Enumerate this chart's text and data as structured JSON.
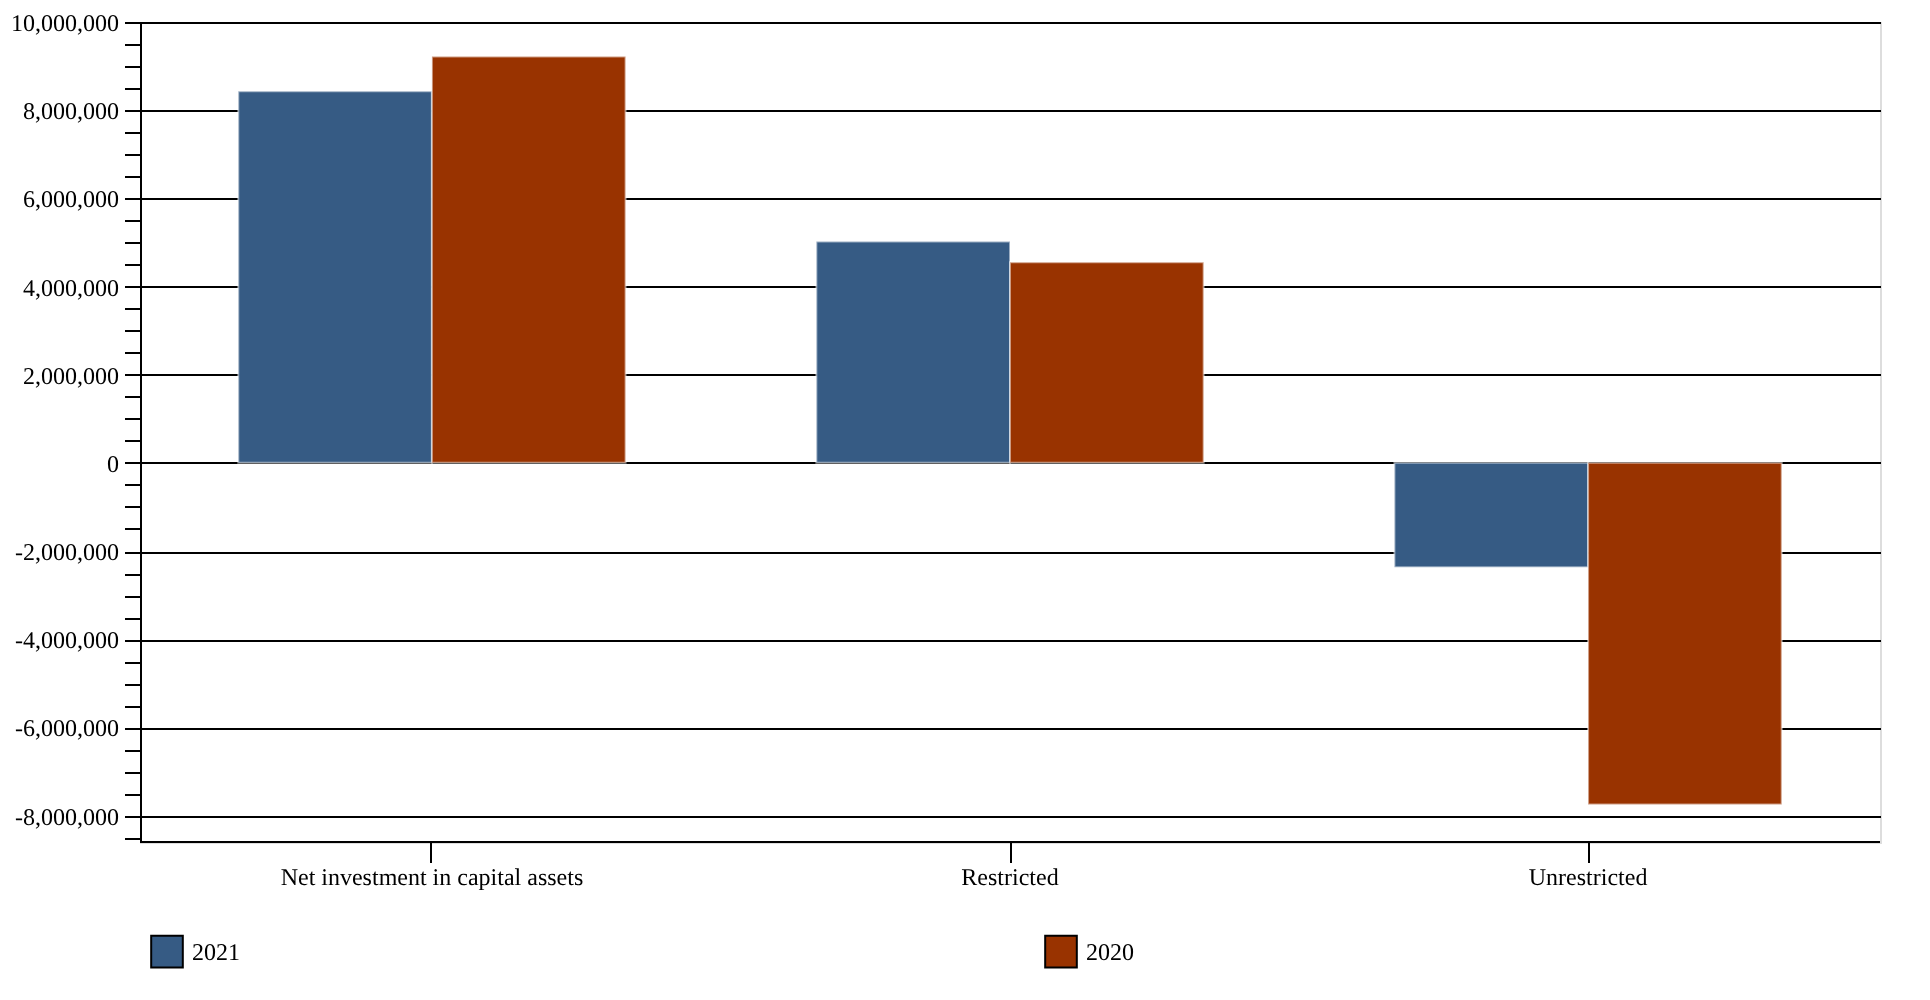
{
  "chart_data": {
    "type": "bar",
    "categories": [
      "Net investment in capital assets",
      "Restricted",
      "Unrestricted"
    ],
    "series": [
      {
        "name": "2021",
        "color": "#365b84",
        "values": [
          8430000,
          5020000,
          -2370000
        ]
      },
      {
        "name": "2020",
        "color": "#993300",
        "values": [
          9220000,
          4550000,
          -7750000
        ]
      }
    ],
    "ylim": [
      -8600000,
      10000000
    ],
    "yticks": [
      {
        "value": -8500000,
        "label": null
      },
      {
        "value": -8000000,
        "label": "-8,000,000"
      },
      {
        "value": -7500000,
        "label": null
      },
      {
        "value": -7000000,
        "label": null
      },
      {
        "value": -6500000,
        "label": null
      },
      {
        "value": -6000000,
        "label": "-6,000,000"
      },
      {
        "value": -5500000,
        "label": null
      },
      {
        "value": -5000000,
        "label": null
      },
      {
        "value": -4500000,
        "label": null
      },
      {
        "value": -4000000,
        "label": "-4,000,000"
      },
      {
        "value": -3500000,
        "label": null
      },
      {
        "value": -3000000,
        "label": null
      },
      {
        "value": -2500000,
        "label": null
      },
      {
        "value": -2000000,
        "label": "-2,000,000"
      },
      {
        "value": -1500000,
        "label": null
      },
      {
        "value": -1000000,
        "label": null
      },
      {
        "value": -500000,
        "label": null
      },
      0,
      {
        "value": 500000,
        "label": null
      },
      {
        "value": 1000000,
        "label": null
      },
      {
        "value": 1500000,
        "label": null
      },
      {
        "value": 2000000,
        "label": "2,000,000"
      },
      {
        "value": 2500000,
        "label": null
      },
      {
        "value": 3000000,
        "label": null
      },
      {
        "value": 3500000,
        "label": null
      },
      {
        "value": 4000000,
        "label": "4,000,000"
      },
      {
        "value": 4500000,
        "label": null
      },
      {
        "value": 5000000,
        "label": null
      },
      {
        "value": 5500000,
        "label": null
      },
      {
        "value": 6000000,
        "label": "6,000,000"
      },
      {
        "value": 6500000,
        "label": null
      },
      {
        "value": 7000000,
        "label": null
      },
      {
        "value": 7500000,
        "label": null
      },
      {
        "value": 8000000,
        "label": "8,000,000"
      },
      {
        "value": 8500000,
        "label": null
      },
      {
        "value": 9000000,
        "label": null
      },
      {
        "value": 9500000,
        "label": null
      },
      {
        "value": 10000000,
        "label": "10,000,000"
      }
    ],
    "grid": "y",
    "legend": "bottom"
  }
}
